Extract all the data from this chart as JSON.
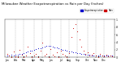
{
  "title": "Milwaukee Weather Evapotranspiration vs Rain per Day (Inches)",
  "title_fontsize": 2.8,
  "background_color": "#ffffff",
  "legend_labels": [
    "Evapotranspiration",
    "Rain"
  ],
  "legend_colors": [
    "#0000cc",
    "#cc0000"
  ],
  "et_color": "#0000cc",
  "rain_color": "#cc0000",
  "black_color": "#000000",
  "ylim": [
    0,
    1.0
  ],
  "xlim": [
    0,
    53
  ],
  "grid_color": "#999999",
  "et_x": [
    1,
    2,
    3,
    4,
    5,
    6,
    7,
    8,
    9,
    10,
    11,
    12,
    13,
    14,
    15,
    16,
    17,
    18,
    19,
    20,
    21,
    22,
    23,
    24,
    25,
    26,
    27,
    28,
    29,
    30,
    31,
    32,
    33,
    34,
    35,
    36,
    37,
    38,
    39,
    40,
    41,
    42,
    43,
    44,
    45,
    46,
    47,
    48,
    49,
    50,
    51,
    52
  ],
  "et_y": [
    0.05,
    0.06,
    0.07,
    0.06,
    0.07,
    0.08,
    0.09,
    0.1,
    0.11,
    0.13,
    0.15,
    0.17,
    0.18,
    0.2,
    0.22,
    0.24,
    0.25,
    0.27,
    0.28,
    0.3,
    0.31,
    0.3,
    0.29,
    0.27,
    0.26,
    0.24,
    0.22,
    0.2,
    0.19,
    0.17,
    0.16,
    0.15,
    0.14,
    0.13,
    0.12,
    0.11,
    0.1,
    0.09,
    0.08,
    0.07,
    0.07,
    0.06,
    0.06,
    0.05,
    0.05,
    0.05,
    0.04,
    0.04,
    0.04,
    0.04,
    0.04,
    0.04
  ],
  "rain_x": [
    1,
    2,
    3,
    4,
    5,
    6,
    7,
    8,
    9,
    10,
    11,
    12,
    13,
    14,
    15,
    16,
    17,
    18,
    19,
    20,
    21,
    22,
    23,
    24,
    25,
    26,
    27,
    28,
    29,
    30,
    31,
    32,
    33,
    34,
    35,
    36,
    37,
    38,
    39,
    40,
    41,
    42,
    43,
    44,
    45,
    46,
    47,
    48,
    49,
    50,
    51,
    52
  ],
  "rain_y": [
    0.1,
    0.05,
    0.0,
    0.15,
    0.02,
    0.0,
    0.2,
    0.08,
    0.0,
    0.05,
    0.28,
    0.12,
    0.0,
    0.05,
    0.1,
    0.0,
    0.18,
    0.38,
    0.05,
    0.1,
    0.0,
    0.22,
    0.08,
    0.03,
    0.14,
    0.0,
    0.18,
    0.1,
    0.05,
    0.0,
    0.12,
    0.55,
    0.78,
    0.88,
    0.68,
    0.48,
    0.28,
    0.18,
    0.1,
    0.14,
    0.05,
    0.08,
    0.12,
    0.06,
    0.0,
    0.1,
    0.05,
    0.02,
    0.08,
    0.03,
    0.04,
    0.02
  ],
  "xtick_positions": [
    1,
    5,
    9,
    14,
    18,
    22,
    27,
    31,
    35,
    40,
    44,
    48,
    53
  ],
  "xtick_labels": [
    "Jan",
    "Feb",
    "Mar",
    "Apr",
    "May",
    "Jun",
    "Jul",
    "Aug",
    "Sep",
    "Oct",
    "Nov",
    "Dec",
    ""
  ],
  "ytick_positions": [
    0.0,
    0.2,
    0.4,
    0.6,
    0.8,
    1.0
  ],
  "ytick_labels": [
    "0",
    ".2",
    ".4",
    ".6",
    ".8",
    "1"
  ],
  "vline_positions": [
    5,
    9,
    14,
    18,
    22,
    27,
    31,
    35,
    40,
    44,
    48
  ]
}
